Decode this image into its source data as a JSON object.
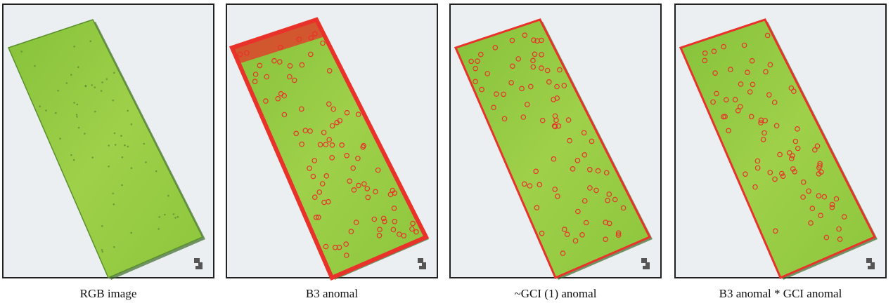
{
  "panels": [
    {
      "caption": "RGB image"
    },
    {
      "caption": "B3 anomal"
    },
    {
      "caption": "~GCI (1) anomal"
    },
    {
      "caption": "B3 anomal * GCI anomal"
    }
  ]
}
